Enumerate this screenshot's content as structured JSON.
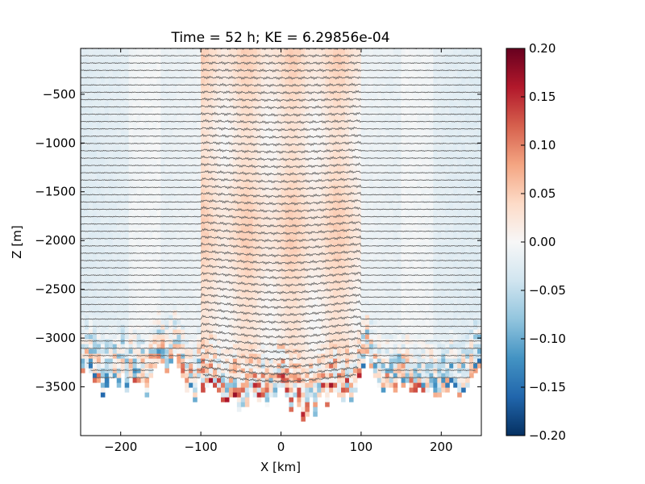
{
  "chart_data": {
    "type": "heatmap",
    "title": "Time = 52 h; KE = 6.29856e-04",
    "xlabel": "X [km]",
    "ylabel": "Z [m]",
    "xlim": [
      -250,
      250
    ],
    "ylim": [
      -4000,
      -30
    ],
    "x_ticks": [
      -200,
      -100,
      0,
      100,
      200
    ],
    "y_ticks": [
      -3500,
      -3000,
      -2500,
      -2000,
      -1500,
      -1000,
      -500
    ],
    "x_tick_labels": [
      "−200",
      "−100",
      "0",
      "100",
      "200"
    ],
    "y_tick_labels": [
      "−3500",
      "−3000",
      "−2500",
      "−2000",
      "−1500",
      "−1000",
      "−500"
    ],
    "colorbar": {
      "min": -0.2,
      "max": 0.2,
      "colormap": "RdBu_r",
      "ticks": [
        -0.2,
        -0.15,
        -0.1,
        -0.05,
        0.0,
        0.05,
        0.1,
        0.15,
        0.2
      ],
      "tick_labels": [
        "−0.20",
        "−0.15",
        "−0.10",
        "−0.05",
        "0.00",
        "0.05",
        "0.10",
        "0.15",
        "0.20"
      ]
    },
    "bathymetry": {
      "x": [
        -250,
        -230,
        -200,
        -170,
        -150,
        -130,
        -110,
        -100,
        -90,
        -70,
        -50,
        -30,
        -10,
        0,
        10,
        30,
        50,
        70,
        90,
        100,
        110,
        130,
        150,
        170,
        200,
        230,
        250
      ],
      "z": [
        -3200,
        -3520,
        -3450,
        -3520,
        -3300,
        -3250,
        -3580,
        -3450,
        -3550,
        -3620,
        -3700,
        -3600,
        -3650,
        -3560,
        -3680,
        -3760,
        -3650,
        -3620,
        -3580,
        -3280,
        -3250,
        -3520,
        -3500,
        -3540,
        -3520,
        -3560,
        -3300
      ]
    },
    "contour_count": 46,
    "contour_color": "#5a5a5a",
    "grid": false
  }
}
